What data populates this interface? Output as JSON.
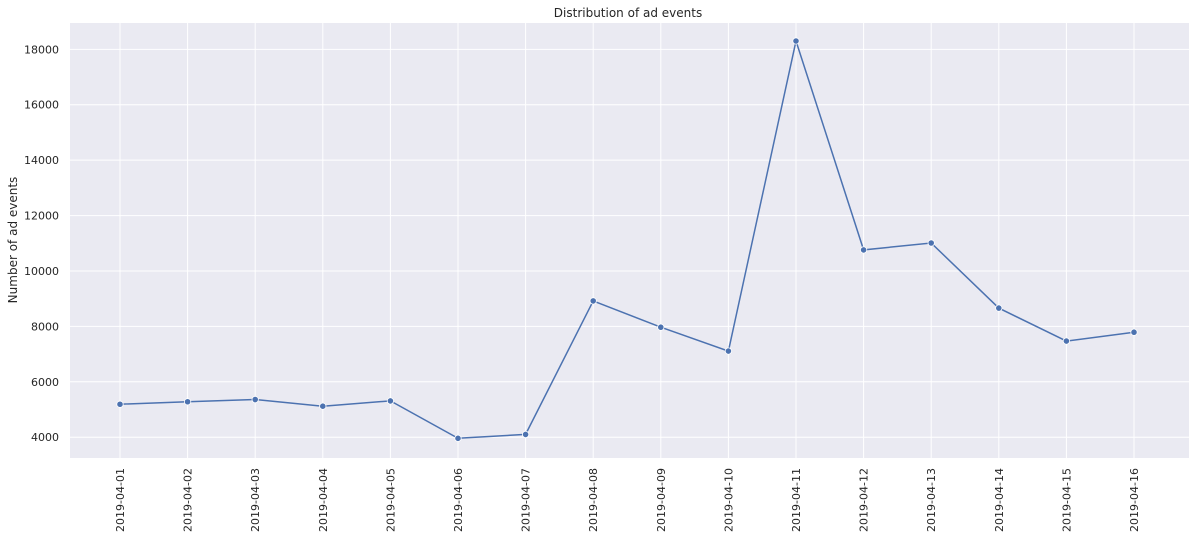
{
  "chart_data": {
    "type": "line",
    "title": "Distribution of ad events",
    "xlabel": "",
    "ylabel": "Number of ad events",
    "categories": [
      "2019-04-01",
      "2019-04-02",
      "2019-04-03",
      "2019-04-04",
      "2019-04-05",
      "2019-04-06",
      "2019-04-07",
      "2019-04-08",
      "2019-04-09",
      "2019-04-10",
      "2019-04-11",
      "2019-04-12",
      "2019-04-13",
      "2019-04-14",
      "2019-04-15",
      "2019-04-16"
    ],
    "values": [
      5190,
      5280,
      5360,
      5120,
      5310,
      3960,
      4100,
      8920,
      7970,
      7110,
      18300,
      10760,
      11010,
      8660,
      7470,
      7790
    ],
    "yticks": [
      4000,
      6000,
      8000,
      10000,
      12000,
      14000,
      16000,
      18000
    ],
    "ylim": [
      3250,
      18950
    ],
    "grid": true,
    "line_color": "#4c72b0",
    "background_color": "#eaeaf2"
  }
}
